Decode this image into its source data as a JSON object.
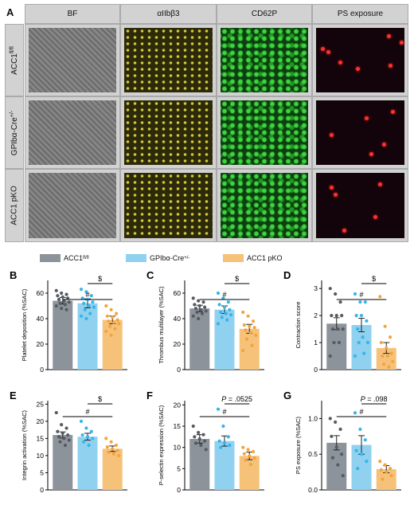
{
  "panelA": {
    "label": "A",
    "columns": [
      "BF",
      "αIIbβ3",
      "CD62P",
      "PS exposure"
    ],
    "rows": [
      "ACC1fl/fl",
      "GPIbα-Cre+/-",
      "ACC1 pKO"
    ]
  },
  "legend": [
    {
      "base": "ACC1",
      "sup": "fl/fl",
      "color": "#8c939a"
    },
    {
      "base": "GPIbα-Cre",
      "sup": "+/-",
      "color": "#8fd1ef"
    },
    {
      "base": "ACC1 pKO",
      "sup": "",
      "color": "#f6c27a"
    }
  ],
  "colors": {
    "grey": "#8c939a",
    "blue": "#8fd1ef",
    "orange": "#f6c27a",
    "grey_dot": "#555b61",
    "blue_dot": "#38b4ea",
    "orange_dot": "#f4a33d"
  },
  "chart_data": [
    {
      "panel": "B",
      "type": "bar",
      "categories": [
        "ACC1fl/fl",
        "GPIbα-Cre+/-",
        "ACC1 pKO"
      ],
      "values": [
        54,
        52,
        39
      ],
      "errors": [
        2.5,
        3.5,
        3
      ],
      "points": [
        [
          62,
          60,
          59,
          58,
          57,
          56,
          55,
          54,
          53,
          52,
          51,
          50,
          48,
          47
        ],
        [
          63,
          61,
          58,
          56,
          55,
          53,
          52,
          50,
          49,
          47,
          44,
          42,
          40
        ],
        [
          50,
          47,
          44,
          42,
          41,
          39,
          38,
          37,
          36,
          34,
          32,
          30,
          27
        ]
      ],
      "ylabel": "Platelet deposition (%SAC)",
      "ylim": [
        0,
        70
      ],
      "yticks": [
        0,
        20,
        40,
        60
      ],
      "annotations": [
        {
          "text": "#",
          "from": 0,
          "to": 2
        },
        {
          "text": "$",
          "from": 1,
          "to": 2
        }
      ]
    },
    {
      "panel": "C",
      "type": "bar",
      "categories": [
        "ACC1fl/fl",
        "GPIbα-Cre+/-",
        "ACC1 pKO"
      ],
      "values": [
        48,
        47,
        32
      ],
      "errors": [
        2.5,
        3,
        3.5
      ],
      "points": [
        [
          56,
          54,
          53,
          51,
          50,
          49,
          48,
          47,
          46,
          45,
          44,
          42,
          40
        ],
        [
          60,
          56,
          53,
          51,
          49,
          47,
          45,
          44,
          43,
          41,
          39,
          36
        ],
        [
          45,
          42,
          38,
          35,
          34,
          33,
          31,
          29,
          27,
          24,
          19,
          15
        ]
      ],
      "ylabel": "Thrombus multilayer (%SAC)",
      "ylim": [
        0,
        70
      ],
      "yticks": [
        0,
        20,
        40,
        60
      ],
      "annotations": [
        {
          "text": "#",
          "from": 0,
          "to": 2
        },
        {
          "text": "$",
          "from": 1,
          "to": 2
        }
      ]
    },
    {
      "panel": "D",
      "type": "bar",
      "categories": [
        "ACC1fl/fl",
        "GPIbα-Cre+/-",
        "ACC1 pKO"
      ],
      "values": [
        1.7,
        1.65,
        0.8
      ],
      "errors": [
        0.22,
        0.25,
        0.2
      ],
      "points": [
        [
          3,
          2.8,
          2.5,
          2,
          2,
          2,
          1.5,
          1.5,
          1.5,
          1,
          1,
          0.5
        ],
        [
          2.8,
          2.5,
          2.5,
          2,
          2,
          1.8,
          1.5,
          1.2,
          1,
          1,
          0.6,
          0.5
        ],
        [
          2.7,
          1.6,
          1.2,
          1,
          0.8,
          0.6,
          0.5,
          0.5,
          0.3,
          0.2,
          0.1
        ]
      ],
      "ylabel": "Contraction score",
      "ylim": [
        0,
        3.3
      ],
      "yticks": [
        0,
        1,
        2,
        3
      ],
      "annotations": [
        {
          "text": "#",
          "from": 0,
          "to": 2
        },
        {
          "text": "$",
          "from": 1,
          "to": 2
        }
      ]
    },
    {
      "panel": "E",
      "type": "bar",
      "categories": [
        "ACC1fl/fl",
        "GPIbα-Cre+/-",
        "ACC1 pKO"
      ],
      "values": [
        16,
        15.5,
        12
      ],
      "errors": [
        0.9,
        1,
        0.8
      ],
      "points": [
        [
          22.5,
          19,
          18,
          17,
          16.5,
          16,
          15.5,
          15,
          14.5,
          14,
          13
        ],
        [
          20,
          18,
          17,
          16,
          15.5,
          15,
          14,
          13
        ],
        [
          15,
          14,
          13,
          12.5,
          12,
          11.5,
          11,
          10.5,
          10
        ]
      ],
      "ylabel": "Integrin activation (%SAC)",
      "ylim": [
        0,
        26
      ],
      "yticks": [
        0,
        5,
        10,
        15,
        20,
        25
      ],
      "annotations": [
        {
          "text": "#",
          "from": 0,
          "to": 2
        },
        {
          "text": "$",
          "from": 1,
          "to": 2
        }
      ]
    },
    {
      "panel": "F",
      "type": "bar",
      "categories": [
        "ACC1fl/fl",
        "GPIbα-Cre+/-",
        "ACC1 pKO"
      ],
      "values": [
        12,
        11.5,
        8
      ],
      "errors": [
        1,
        1.2,
        0.9
      ],
      "points": [
        [
          15,
          13.5,
          13,
          12.5,
          12,
          11.5,
          11,
          10.5,
          9.5
        ],
        [
          19,
          15,
          12.5,
          11.5,
          11,
          10.5,
          10
        ],
        [
          10,
          9.5,
          9,
          8.5,
          8,
          7.5,
          7,
          6
        ]
      ],
      "ylabel": "P-selectin expression (%SAC)",
      "ylim": [
        0,
        21
      ],
      "yticks": [
        0,
        5,
        10,
        15,
        20
      ],
      "annotations": [
        {
          "text": "#",
          "from": 0,
          "to": 2
        },
        {
          "text": "P = .0525",
          "from": 1,
          "to": 2
        }
      ]
    },
    {
      "panel": "G",
      "type": "bar",
      "categories": [
        "ACC1fl/fl",
        "GPIbα-Cre+/-",
        "ACC1 pKO"
      ],
      "values": [
        0.66,
        0.63,
        0.29
      ],
      "errors": [
        0.1,
        0.13,
        0.05
      ],
      "points": [
        [
          1.0,
          0.95,
          0.85,
          0.75,
          0.6,
          0.5,
          0.45,
          0.35,
          0.2
        ],
        [
          1.08,
          0.85,
          0.7,
          0.55,
          0.5,
          0.4,
          0.3
        ],
        [
          0.4,
          0.35,
          0.3,
          0.28,
          0.25,
          0.2,
          0.15
        ]
      ],
      "ylabel": "PS exposure (%SAC)",
      "ylim": [
        0,
        1.25
      ],
      "yticks": [
        0.0,
        0.5,
        1.0
      ],
      "annotations": [
        {
          "text": "#",
          "from": 0,
          "to": 2
        },
        {
          "text": "P = .098",
          "from": 1,
          "to": 2
        }
      ]
    }
  ]
}
